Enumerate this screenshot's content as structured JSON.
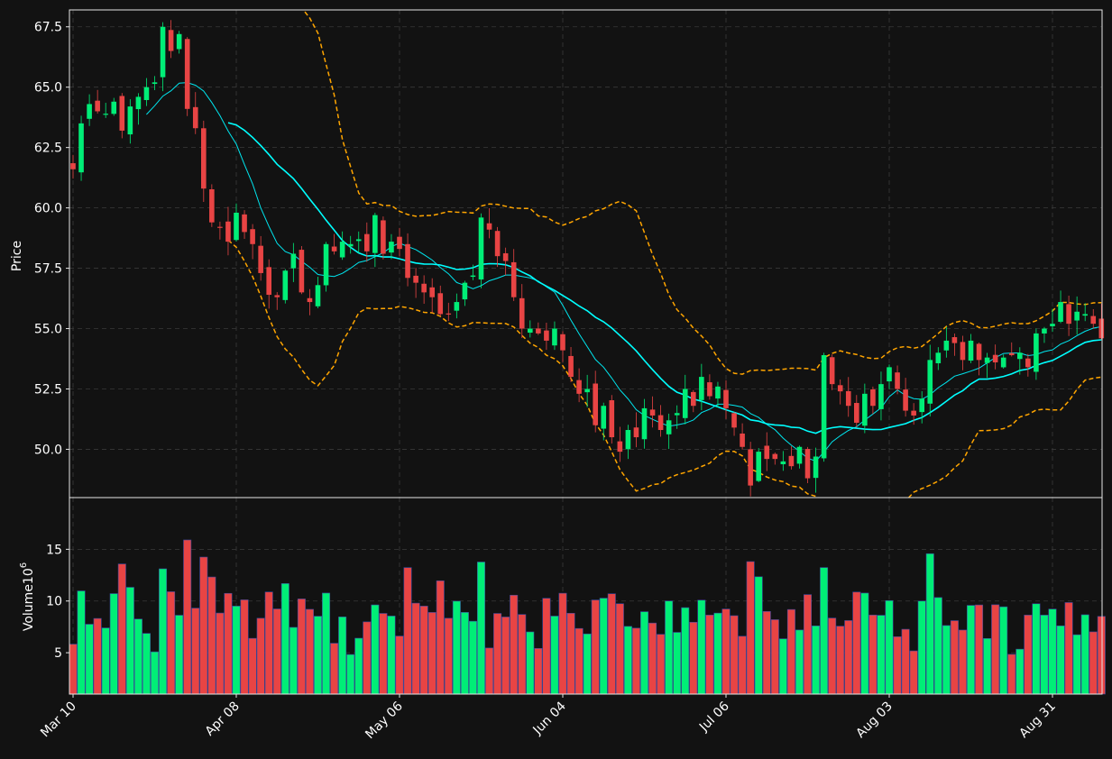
{
  "chart_data": {
    "type": "candlestick",
    "ylabel_price": "Price",
    "ylabel_volume": "Volume",
    "volume_exponent_label": "10",
    "volume_exponent": "6",
    "price_ylim": [
      48.0,
      68.2
    ],
    "price_yticks": [
      {
        "value": 50.0,
        "label": "50.0"
      },
      {
        "value": 52.5,
        "label": "52.5"
      },
      {
        "value": 55.0,
        "label": "55.0"
      },
      {
        "value": 57.5,
        "label": "57.5"
      },
      {
        "value": 60.0,
        "label": "60.0"
      },
      {
        "value": 62.5,
        "label": "62.5"
      },
      {
        "value": 65.0,
        "label": "65.0"
      },
      {
        "value": 67.5,
        "label": "67.5"
      }
    ],
    "volume_ylim": [
      1.0,
      20.0
    ],
    "volume_yticks": [
      {
        "value": 5,
        "label": "5"
      },
      {
        "value": 10,
        "label": "10"
      },
      {
        "value": 15,
        "label": "15"
      }
    ],
    "xticks": [
      {
        "index": 0,
        "label": "Mar 10"
      },
      {
        "index": 20,
        "label": "Apr 08"
      },
      {
        "index": 40,
        "label": "May 06"
      },
      {
        "index": 60,
        "label": "Jun 04"
      },
      {
        "index": 80,
        "label": "Jul 06"
      },
      {
        "index": 100,
        "label": "Aug 03"
      },
      {
        "index": 120,
        "label": "Aug 31"
      }
    ],
    "grid": true,
    "colors": {
      "up": "#00ee77",
      "down": "#e84444",
      "background": "#121212",
      "grid": "#3a3a3a",
      "ma_short": "#00e5ee",
      "ma_long": "#00ffff",
      "bands": "#ffa500"
    },
    "close": [
      61.6,
      63.5,
      64.3,
      64.0,
      63.9,
      64.4,
      63.2,
      64.2,
      64.6,
      65.0,
      65.2,
      67.5,
      66.5,
      67.2,
      64.1,
      63.3,
      60.8,
      59.4,
      59.2,
      58.6,
      59.8,
      59.0,
      58.5,
      57.3,
      56.4,
      56.3,
      57.4,
      58.1,
      56.5,
      56.1,
      56.8,
      58.5,
      58.2,
      58.6,
      58.5,
      58.7,
      58.2,
      59.7,
      58.1,
      58.6,
      58.3,
      57.1,
      56.9,
      56.5,
      56.3,
      55.6,
      55.6,
      56.1,
      56.9,
      57.2,
      59.6,
      59.1,
      58.0,
      57.8,
      56.3,
      55.0,
      55.0,
      54.8,
      54.5,
      55.0,
      54.1,
      53.0,
      52.3,
      52.5,
      51.0,
      51.8,
      50.5,
      49.9,
      50.8,
      50.5,
      51.7,
      51.4,
      50.8,
      51.2,
      51.5,
      52.5,
      51.8,
      53.0,
      52.2,
      52.6,
      51.7,
      50.9,
      50.1,
      48.5,
      49.9,
      49.6,
      49.6,
      49.5,
      49.3,
      50.1,
      48.8,
      49.7,
      53.9,
      52.7,
      52.4,
      51.8,
      51.1,
      52.3,
      51.8,
      52.7,
      53.4,
      52.5,
      51.6,
      51.4,
      52.1,
      53.7,
      54.0,
      54.5,
      54.4,
      53.7,
      54.5,
      53.7,
      53.8,
      53.6,
      53.8,
      53.9,
      54.0,
      53.4,
      54.8,
      55.0,
      55.2,
      56.1,
      55.2,
      55.7,
      55.6,
      55.2,
      54.6
    ]
  }
}
